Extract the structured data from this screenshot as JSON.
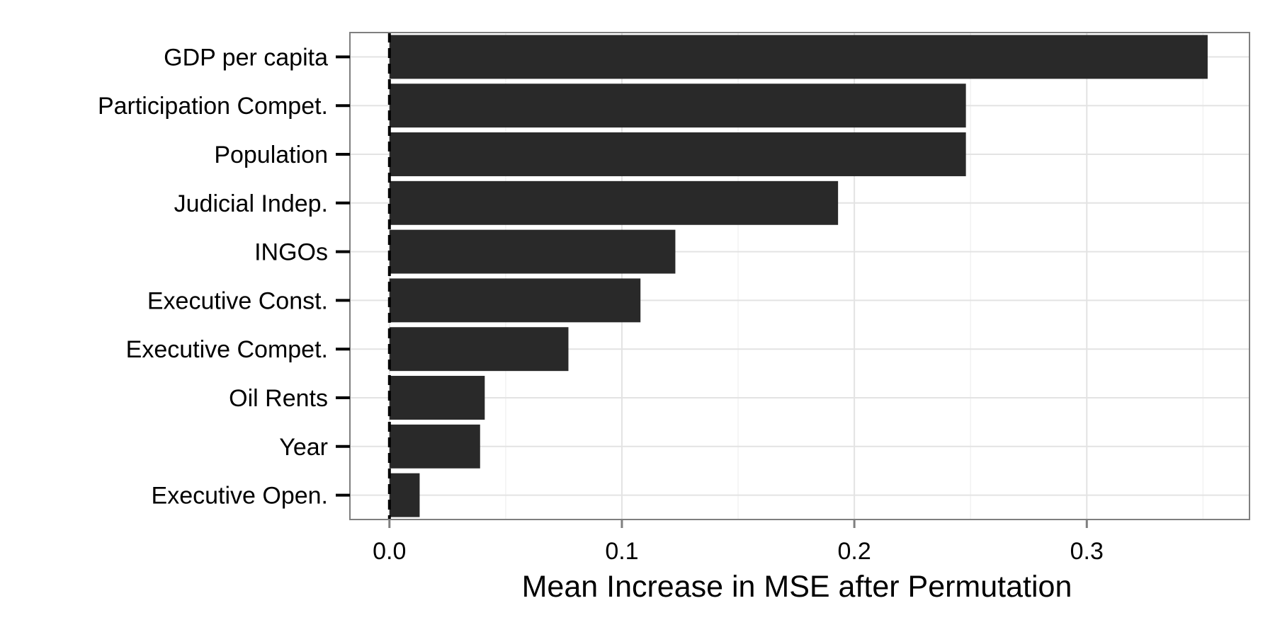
{
  "chart_data": {
    "type": "bar",
    "orientation": "horizontal",
    "title": "",
    "xlabel": "Mean Increase in MSE after Permutation",
    "ylabel": "",
    "categories": [
      "GDP per capita",
      "Participation Compet.",
      "Population",
      "Judicial Indep.",
      "INGOs",
      "Executive Const.",
      "Executive Compet.",
      "Oil Rents",
      "Year",
      "Executive Open."
    ],
    "values": [
      0.352,
      0.248,
      0.248,
      0.193,
      0.123,
      0.108,
      0.077,
      0.041,
      0.039,
      0.013
    ],
    "xlim": [
      -0.017,
      0.37
    ],
    "xticks": [
      0.0,
      0.1,
      0.2,
      0.3
    ],
    "xtick_labels": [
      "0.0",
      "0.1",
      "0.2",
      "0.3"
    ],
    "reference_line": {
      "x": 0.0,
      "style": "dashed"
    },
    "bar_color": "#292929",
    "grid": true,
    "legend": "none"
  }
}
